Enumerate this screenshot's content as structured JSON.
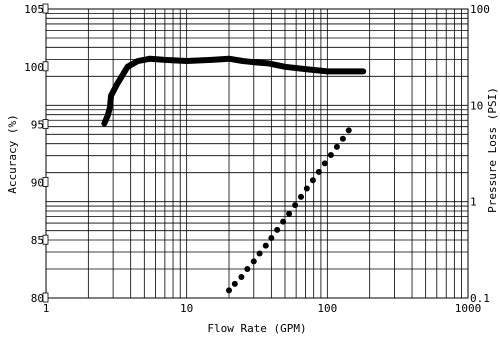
{
  "chart_data": {
    "type": "line",
    "xlabel": "Flow Rate (GPM)",
    "ylabel_left": "Accuracy (%)",
    "ylabel_right": "Pressure Loss (PSI)",
    "x_scale": "log",
    "xlim": [
      1,
      1000
    ],
    "ylim_left": [
      80,
      105
    ],
    "ylim_right": [
      0.1,
      100
    ],
    "y_right_scale": "log",
    "x_ticks": [
      {
        "value": 1,
        "label": "1"
      },
      {
        "value": 10,
        "label": "10"
      },
      {
        "value": 100,
        "label": "100"
      },
      {
        "value": 1000,
        "label": "1000"
      }
    ],
    "y_left_ticks": [
      {
        "value": 80,
        "label": "80"
      },
      {
        "value": 85,
        "label": "85"
      },
      {
        "value": 90,
        "label": "90"
      },
      {
        "value": 95,
        "label": "95"
      },
      {
        "value": 100,
        "label": "100"
      },
      {
        "value": 105,
        "label": "105"
      }
    ],
    "y_right_ticks": [
      {
        "value": 0.1,
        "label": "0.1"
      },
      {
        "value": 1,
        "label": "1"
      },
      {
        "value": 10,
        "label": "10"
      },
      {
        "value": 100,
        "label": "100"
      }
    ],
    "grid": true,
    "series": [
      {
        "axis": "left",
        "style": "thick-line",
        "color": "#000000",
        "x": [
          2.6,
          2.75,
          2.85,
          2.9,
          3.2,
          3.8,
          4.5,
          5.5,
          7,
          10,
          15,
          20,
          25,
          30,
          38,
          50,
          70,
          100,
          130,
          180
        ],
        "y": [
          95.1,
          95.8,
          96.5,
          97.5,
          98.5,
          100.0,
          100.5,
          100.7,
          100.6,
          100.5,
          100.6,
          100.7,
          100.5,
          100.4,
          100.3,
          100.0,
          99.8,
          99.6,
          99.6,
          99.6
        ]
      },
      {
        "axis": "right",
        "style": "dotted-line",
        "color": "#000000",
        "x": [
          20,
          22,
          24.5,
          27,
          30,
          33,
          36.5,
          40,
          44,
          48.5,
          53.5,
          59,
          65,
          71.5,
          79,
          87,
          96,
          106,
          117,
          129,
          142
        ],
        "y": [
          0.12,
          0.14,
          0.165,
          0.2,
          0.24,
          0.29,
          0.35,
          0.42,
          0.51,
          0.62,
          0.75,
          0.92,
          1.12,
          1.37,
          1.67,
          2.04,
          2.5,
          3.05,
          3.7,
          4.5,
          5.5
        ]
      }
    ]
  }
}
